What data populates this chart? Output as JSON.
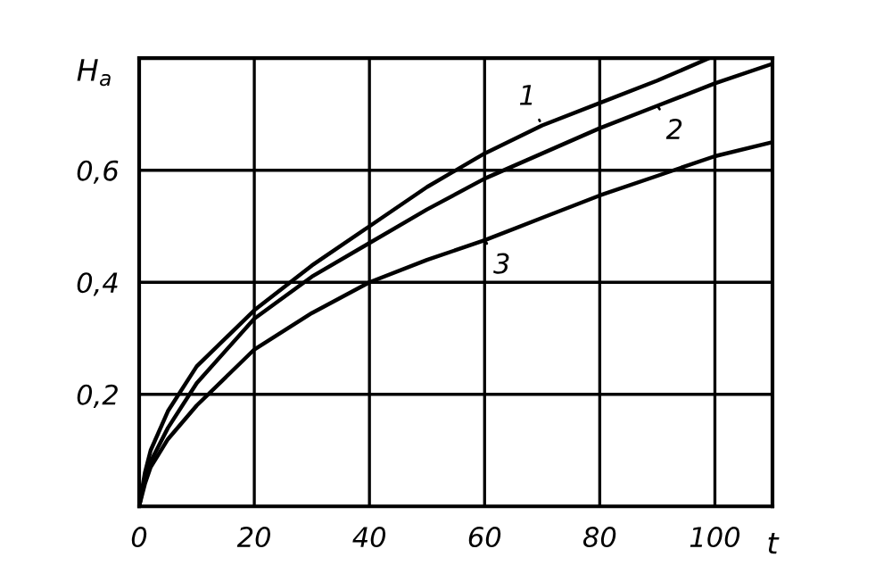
{
  "chart_data": {
    "type": "line",
    "xlabel": "t",
    "ylabel": "H$_{a}$",
    "xlim": [
      0,
      110
    ],
    "ylim": [
      0,
      0.8
    ],
    "xticks": [
      0,
      20,
      40,
      60,
      80,
      100
    ],
    "yticks": [
      {
        "value": 0.2,
        "label": "0,2"
      },
      {
        "value": 0.4,
        "label": "0,4"
      },
      {
        "value": 0.6,
        "label": "0,6"
      }
    ],
    "grid": true,
    "marker": "none",
    "line_style": "solid",
    "series": [
      {
        "name": "1",
        "color": "#000000",
        "x": [
          0,
          1,
          2,
          5,
          10,
          20,
          30,
          40,
          50,
          60,
          70,
          80,
          90,
          99
        ],
        "values": [
          0,
          0.06,
          0.1,
          0.17,
          0.25,
          0.35,
          0.43,
          0.5,
          0.57,
          0.63,
          0.68,
          0.72,
          0.76,
          0.8
        ]
      },
      {
        "name": "2",
        "color": "#000000",
        "x": [
          0,
          1,
          2,
          5,
          10,
          20,
          30,
          40,
          50,
          60,
          70,
          80,
          90,
          100,
          110
        ],
        "values": [
          0,
          0.05,
          0.08,
          0.14,
          0.22,
          0.335,
          0.41,
          0.47,
          0.53,
          0.585,
          0.63,
          0.675,
          0.715,
          0.755,
          0.79
        ]
      },
      {
        "name": "3",
        "color": "#000000",
        "x": [
          0,
          1,
          2,
          5,
          10,
          20,
          30,
          40,
          50,
          60,
          70,
          80,
          90,
          100,
          110
        ],
        "values": [
          0,
          0.04,
          0.07,
          0.12,
          0.18,
          0.28,
          0.345,
          0.4,
          0.44,
          0.475,
          0.515,
          0.555,
          0.59,
          0.625,
          0.65
        ]
      }
    ]
  }
}
